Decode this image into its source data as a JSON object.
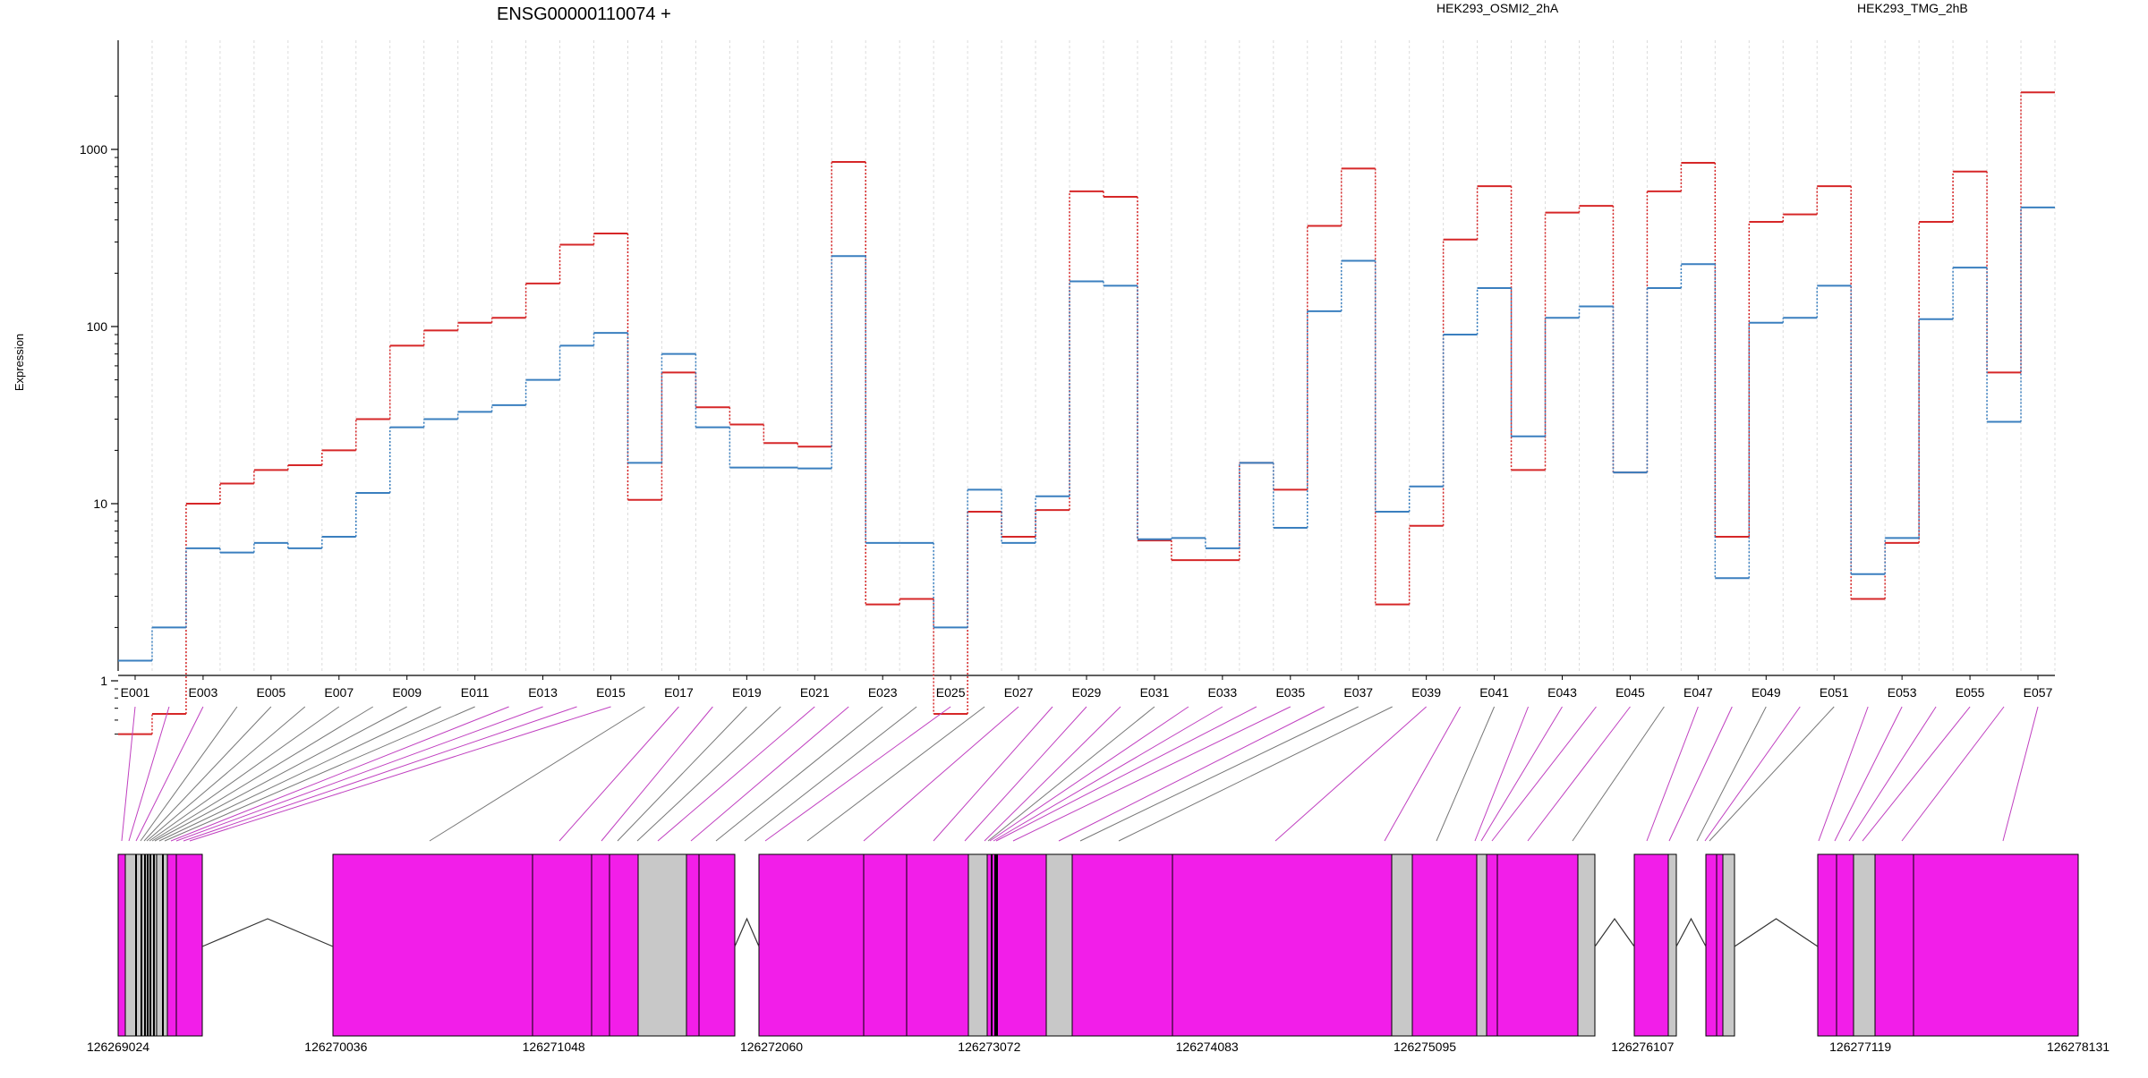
{
  "chart_data": {
    "type": "line",
    "title": "ENSG00000110074 +",
    "ylabel": "Expression",
    "yscale": "log",
    "ylim": [
      0.45,
      2000
    ],
    "yticks": [
      "1",
      "10",
      "100",
      "1000"
    ],
    "grid": "vertical dashed",
    "legend_placement": "top-right",
    "exon_labels": [
      "E001",
      "E003",
      "E005",
      "E007",
      "E009",
      "E011",
      "E013",
      "E015",
      "E017",
      "E019",
      "E021",
      "E023",
      "E025",
      "E027",
      "E029",
      "E031",
      "E033",
      "E035",
      "E037",
      "E039",
      "E041",
      "E043",
      "E045",
      "E047",
      "E049",
      "E051",
      "E053",
      "E055",
      "E057"
    ],
    "series": [
      {
        "name": "HEK293_OSMI2_2hA",
        "color": "#d62728",
        "values": [
          0.5,
          0.65,
          10,
          13,
          15.5,
          16.5,
          20,
          30,
          78,
          95,
          105,
          112,
          175,
          290,
          335,
          10.5,
          55,
          35,
          28,
          22,
          21,
          850,
          2.7,
          2.9,
          0.65,
          9,
          6.5,
          9.2,
          580,
          540,
          6.2,
          4.8,
          4.8,
          17,
          12,
          370,
          780,
          2.7,
          7.5,
          310,
          620,
          15.5,
          440,
          480,
          15,
          580,
          840,
          6.5,
          390,
          430,
          620,
          2.9,
          6,
          390,
          750,
          55,
          2100
        ]
      },
      {
        "name": "HEK293_TMG_2hB",
        "color": "#3a7fbf",
        "values": [
          1.3,
          2,
          5.6,
          5.3,
          6,
          5.6,
          6.5,
          11.5,
          27,
          30,
          33,
          36,
          50,
          78,
          92,
          17,
          70,
          27,
          16,
          16,
          15.8,
          250,
          6,
          6,
          2,
          12,
          6,
          11,
          180,
          170,
          6.3,
          6.4,
          5.6,
          17,
          7.3,
          122,
          235,
          9,
          12.5,
          90,
          165,
          24,
          112,
          130,
          15,
          165,
          225,
          3.8,
          105,
          112,
          170,
          4,
          6.4,
          110,
          215,
          29,
          470
        ]
      }
    ],
    "gene_model": {
      "coordinate_labels": [
        "126269024",
        "126270036",
        "126271048",
        "126272060",
        "126273072",
        "126274083",
        "126275095",
        "126276107",
        "126277119",
        "126278131"
      ]
    }
  },
  "colors": {
    "exon_magenta": "#f21ee9",
    "exon_grey": "#c8c8c8",
    "connector_magenta": "#c040c0",
    "connector_grey": "#777777"
  }
}
